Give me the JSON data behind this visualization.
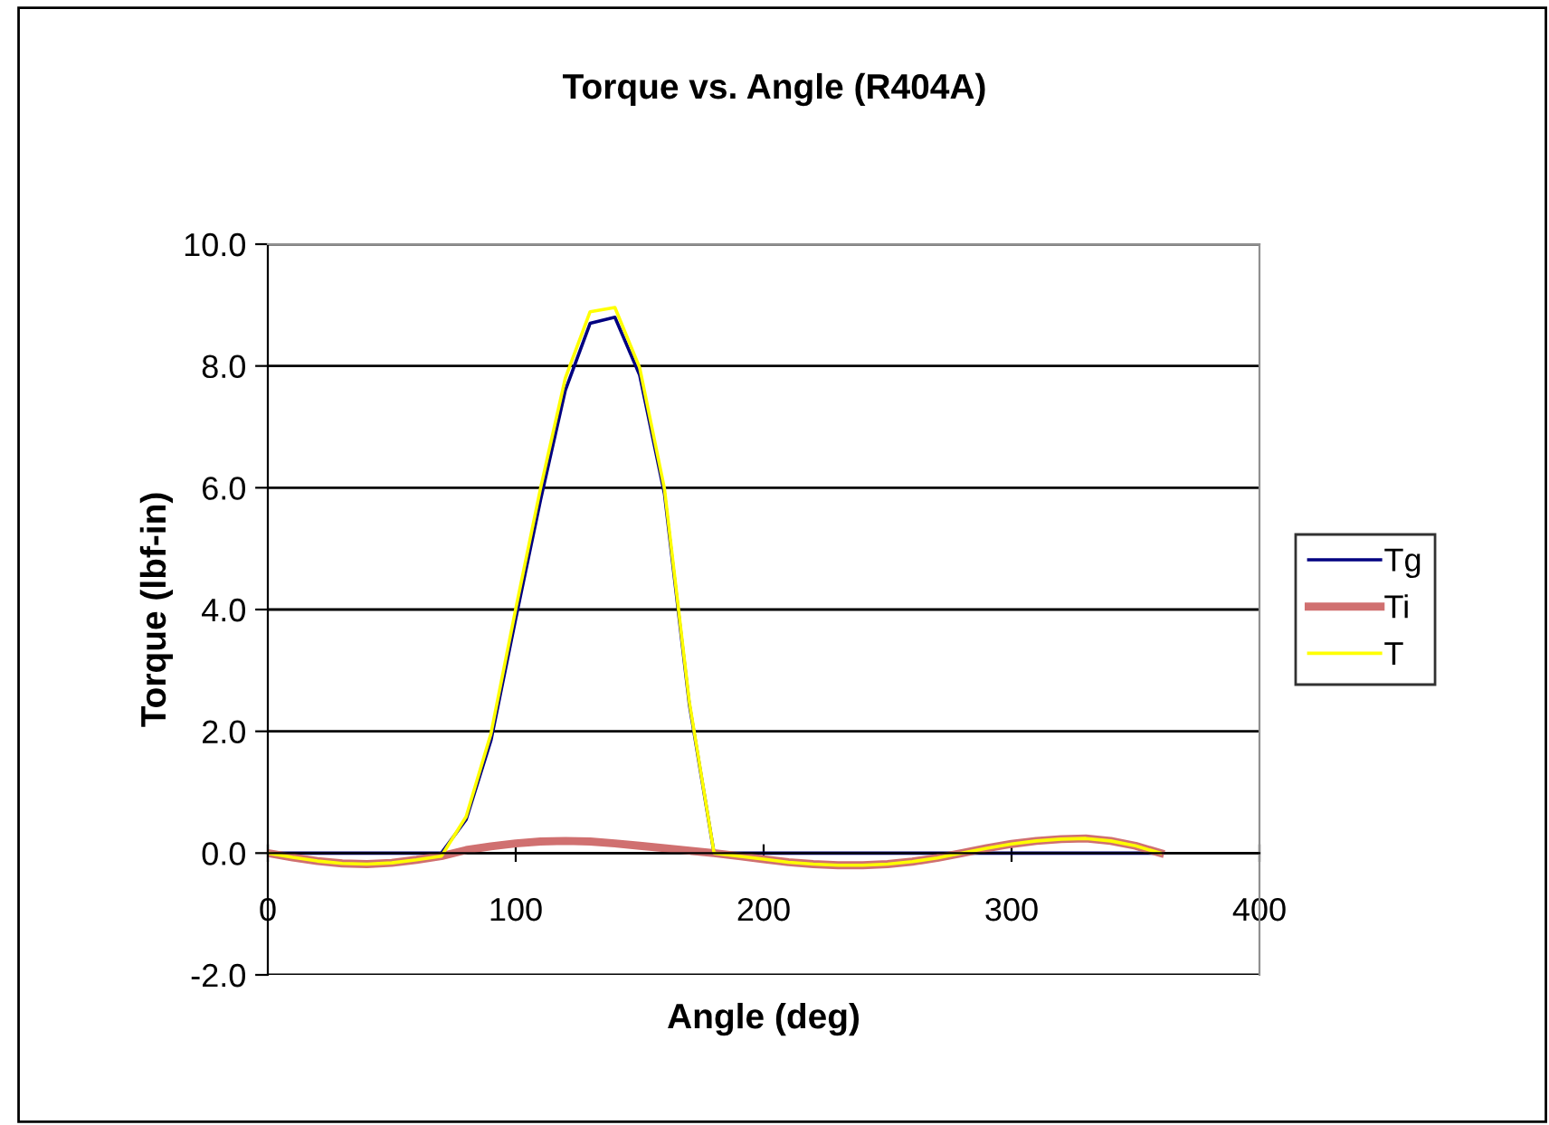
{
  "chart_data": {
    "type": "line",
    "title": "Torque vs. Angle (R404A)",
    "xlabel": "Angle (deg)",
    "ylabel": "Torque (lbf-in)",
    "x": [
      0,
      10,
      20,
      30,
      40,
      50,
      60,
      70,
      80,
      90,
      100,
      110,
      120,
      130,
      140,
      150,
      160,
      170,
      180,
      190,
      200,
      210,
      220,
      230,
      240,
      250,
      260,
      270,
      280,
      290,
      300,
      310,
      320,
      330,
      340,
      350,
      360
    ],
    "series": [
      {
        "name": "Tg",
        "color": "#000080",
        "values": [
          0,
          0,
          0,
          0,
          0,
          0,
          0,
          0,
          0.55,
          1.85,
          3.85,
          5.8,
          7.6,
          8.7,
          8.8,
          7.85,
          5.9,
          2.45,
          0,
          0,
          0,
          0,
          0,
          0,
          0,
          0,
          0,
          0,
          0,
          0,
          0,
          0,
          0,
          0,
          0,
          0,
          0
        ]
      },
      {
        "name": "Ti",
        "color": "#d07070",
        "values": [
          0,
          -0.07,
          -0.13,
          -0.17,
          -0.18,
          -0.16,
          -0.11,
          -0.05,
          0.05,
          0.11,
          0.16,
          0.19,
          0.2,
          0.19,
          0.16,
          0.12,
          0.08,
          0.04,
          0,
          -0.05,
          -0.1,
          -0.15,
          -0.18,
          -0.2,
          -0.2,
          -0.18,
          -0.14,
          -0.08,
          0,
          0.08,
          0.15,
          0.2,
          0.23,
          0.24,
          0.2,
          0.12,
          0
        ]
      },
      {
        "name": "T",
        "color": "#ffff00",
        "values": [
          0,
          -0.07,
          -0.13,
          -0.17,
          -0.18,
          -0.16,
          -0.11,
          -0.05,
          0.6,
          1.96,
          4.01,
          5.99,
          7.8,
          8.89,
          8.96,
          7.97,
          5.98,
          2.49,
          0,
          -0.05,
          -0.1,
          -0.15,
          -0.18,
          -0.2,
          -0.2,
          -0.18,
          -0.14,
          -0.08,
          0,
          0.08,
          0.15,
          0.2,
          0.23,
          0.24,
          0.2,
          0.12,
          0
        ]
      }
    ],
    "xlim": [
      0,
      400
    ],
    "xticks": [
      0,
      100,
      200,
      300,
      400
    ],
    "ylim": [
      -2,
      10
    ],
    "yticks": [
      {
        "value": -2,
        "label": "-2.0"
      },
      {
        "value": 0,
        "label": "0.0"
      },
      {
        "value": 2,
        "label": "2.0"
      },
      {
        "value": 4,
        "label": "4.0"
      },
      {
        "value": 6,
        "label": "6.0"
      },
      {
        "value": 8,
        "label": "8.0"
      },
      {
        "value": 10,
        "label": "10.0"
      }
    ],
    "grid": "y",
    "legend": "right",
    "marker": "none",
    "line_style": "solid"
  }
}
